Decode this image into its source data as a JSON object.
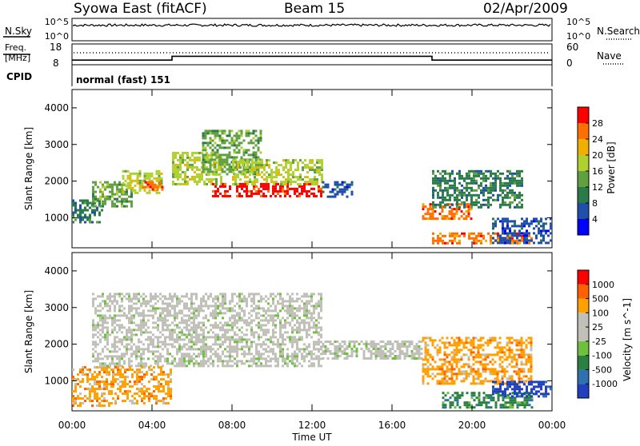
{
  "header": {
    "station": "Syowa East (fitACF)",
    "beam": "Beam 15",
    "date": "02/Apr/2009"
  },
  "noise_panel": {
    "left_label": "N.Sky",
    "right_label": "N.Search",
    "left_ticks": [
      "10^5",
      "10^0"
    ],
    "right_ticks": [
      "10^5",
      "10^0"
    ]
  },
  "freq_panel": {
    "left_label_1": "Freq.",
    "left_label_2": "[MHz]",
    "right_label": "Nave",
    "left_ticks": [
      "18",
      "8"
    ],
    "right_ticks": [
      "60",
      "0"
    ],
    "freq_steps": [
      {
        "from_h": 0,
        "to_h": 5,
        "mhz": 10
      },
      {
        "from_h": 5,
        "to_h": 18,
        "mhz": 12
      },
      {
        "from_h": 18,
        "to_h": 24,
        "mhz": 10
      }
    ]
  },
  "cpid": {
    "label": "CPID",
    "text": "normal (fast) 151"
  },
  "chart_data": [
    {
      "type": "heatmap",
      "title": "",
      "xlabel": "Time UT",
      "ylabel": "Slant Range [km]",
      "x_ticks": [
        "00:00",
        "04:00",
        "08:00",
        "12:00",
        "16:00",
        "20:00",
        "00:00"
      ],
      "y_ticks": [
        "1000",
        "2000",
        "3000",
        "4000"
      ],
      "xlim": [
        0,
        24
      ],
      "ylim": [
        180,
        4500
      ],
      "colorbar": {
        "label": "Power [dB]",
        "ticks": [
          "4",
          "8",
          "12",
          "16",
          "20",
          "24",
          "28"
        ],
        "colors": [
          "#0000ff",
          "#1f4fa8",
          "#2a7a4a",
          "#60a040",
          "#b0d030",
          "#f0b000",
          "#ff7000",
          "#ff0000"
        ]
      },
      "regions": [
        {
          "t0": 0.0,
          "t1": 1.5,
          "r0": 900,
          "r1": 1500,
          "level": 2
        },
        {
          "t0": 1.0,
          "t1": 3.0,
          "r0": 1300,
          "r1": 2000,
          "level": 3
        },
        {
          "t0": 2.5,
          "t1": 4.5,
          "r0": 1700,
          "r1": 2300,
          "level": 4
        },
        {
          "t0": 3.5,
          "t1": 4.5,
          "r0": 1800,
          "r1": 2000,
          "level": 6
        },
        {
          "t0": 5.0,
          "t1": 7.5,
          "r0": 1900,
          "r1": 2800,
          "level": 4
        },
        {
          "t0": 6.5,
          "t1": 9.5,
          "r0": 2200,
          "r1": 3400,
          "level": 3
        },
        {
          "t0": 7.0,
          "t1": 12.5,
          "r0": 1600,
          "r1": 1950,
          "level": 7
        },
        {
          "t0": 8.0,
          "t1": 12.5,
          "r0": 1900,
          "r1": 2600,
          "level": 4
        },
        {
          "t0": 12.5,
          "t1": 14.0,
          "r0": 1600,
          "r1": 2000,
          "level": 1
        },
        {
          "t0": 17.5,
          "t1": 20.0,
          "r0": 1000,
          "r1": 1400,
          "level": 6
        },
        {
          "t0": 18.0,
          "t1": 22.5,
          "r0": 1300,
          "r1": 2300,
          "level": 2
        },
        {
          "t0": 18.0,
          "t1": 23.0,
          "r0": 300,
          "r1": 600,
          "level": 6
        },
        {
          "t0": 21.0,
          "t1": 24.0,
          "r0": 300,
          "r1": 1000,
          "level": 1
        }
      ]
    },
    {
      "type": "heatmap",
      "title": "",
      "xlabel": "Time UT",
      "ylabel": "Slant Range [km]",
      "x_ticks": [
        "00:00",
        "04:00",
        "08:00",
        "12:00",
        "16:00",
        "20:00",
        "00:00"
      ],
      "y_ticks": [
        "1000",
        "2000",
        "3000",
        "4000"
      ],
      "xlim": [
        0,
        24
      ],
      "ylim": [
        180,
        4500
      ],
      "colorbar": {
        "label": "Velocity [m s^-1]",
        "ticks": [
          "1000",
          "500",
          "100",
          "25",
          "-25",
          "-100",
          "-500",
          "-1000"
        ],
        "colors": [
          "#2040c0",
          "#3070b0",
          "#2a8040",
          "#70c040",
          "#c0c0b8",
          "#c0c0b8",
          "#ffa000",
          "#ff6000",
          "#ff0000"
        ]
      },
      "regions": [
        {
          "t0": 0.0,
          "t1": 2.0,
          "r0": 300,
          "r1": 1400,
          "level": 6
        },
        {
          "t0": 1.0,
          "t1": 12.5,
          "r0": 1400,
          "r1": 3400,
          "level": 4
        },
        {
          "t0": 2.0,
          "t1": 5.0,
          "r0": 400,
          "r1": 1400,
          "level": 6
        },
        {
          "t0": 12.5,
          "t1": 17.5,
          "r0": 1600,
          "r1": 2100,
          "level": 4
        },
        {
          "t0": 17.5,
          "t1": 23.0,
          "r0": 900,
          "r1": 2200,
          "level": 6
        },
        {
          "t0": 18.5,
          "t1": 23.0,
          "r0": 300,
          "r1": 700,
          "level": 2
        },
        {
          "t0": 21.0,
          "t1": 24.0,
          "r0": 600,
          "r1": 1000,
          "level": 0
        }
      ]
    }
  ]
}
